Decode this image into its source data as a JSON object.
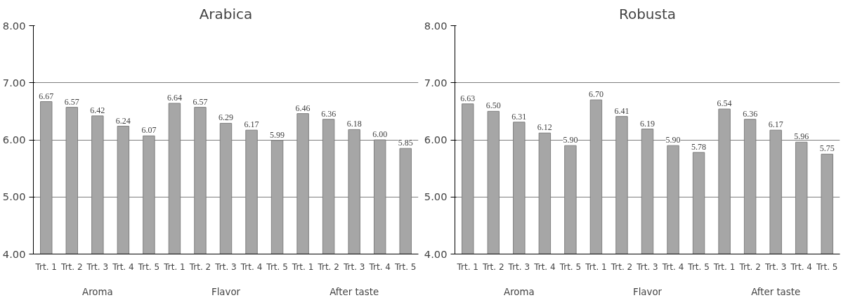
{
  "chart_data": [
    {
      "type": "bar",
      "title": "Arabica",
      "categories": [
        "Trt. 1",
        "Trt. 2",
        "Trt. 3",
        "Trt. 4",
        "Trt. 5",
        "Trt. 1",
        "Trt. 2",
        "Trt. 3",
        "Trt. 4",
        "Trt. 5",
        "Trt. 1",
        "Trt. 2",
        "Trt. 3",
        "Trt. 4",
        "Trt. 5"
      ],
      "values": [
        6.67,
        6.57,
        6.42,
        6.24,
        6.07,
        6.64,
        6.57,
        6.29,
        6.17,
        5.99,
        6.46,
        6.36,
        6.18,
        6.0,
        5.85
      ],
      "value_labels": [
        "6.67",
        "6.57",
        "6.42",
        "6.24",
        "6.07",
        "6.64",
        "6.57",
        "6.29",
        "6.17",
        "5.99",
        "6.46",
        "6.36",
        "6.18",
        "6.00",
        "5.85"
      ],
      "color": "#a6a6a6",
      "ylim": [
        4,
        8
      ],
      "yticks": [
        {
          "value": 4,
          "label": "4.00"
        },
        {
          "value": 5,
          "label": "5.00"
        },
        {
          "value": 6,
          "label": "6.00"
        },
        {
          "value": 7,
          "label": "7.00"
        },
        {
          "value": 8,
          "label": "8.00"
        }
      ],
      "grid": "y",
      "annotations": [
        "Aroma",
        "Flavor",
        "After taste"
      ]
    },
    {
      "type": "bar",
      "title": "Robusta",
      "categories": [
        "Trt. 1",
        "Trt. 2",
        "Trt. 3",
        "Trt. 4",
        "Trt. 5",
        "Trt. 1",
        "Trt. 2",
        "Trt. 3",
        "Trt. 4",
        "Trt. 5",
        "Trt. 1",
        "Trt. 2",
        "Trt. 3",
        "Trt. 4",
        "Trt. 5"
      ],
      "values": [
        6.63,
        6.5,
        6.31,
        6.12,
        5.9,
        6.7,
        6.41,
        6.19,
        5.9,
        5.78,
        6.54,
        6.36,
        6.17,
        5.96,
        5.75
      ],
      "value_labels": [
        "6.63",
        "6.50",
        "6.31",
        "6.12",
        "5.90",
        "6.70",
        "6.41",
        "6.19",
        "5.90",
        "5.78",
        "6.54",
        "6.36",
        "6.17",
        "5.96",
        "5.75"
      ],
      "color": "#a6a6a6",
      "ylim": [
        4,
        8
      ],
      "yticks": [
        {
          "value": 4,
          "label": "4.00"
        },
        {
          "value": 5,
          "label": "5.00"
        },
        {
          "value": 6,
          "label": "6.00"
        },
        {
          "value": 7,
          "label": "7.00"
        },
        {
          "value": 8,
          "label": "8.00"
        }
      ],
      "grid": "y",
      "annotations": [
        "Aroma",
        "Flavor",
        "After taste"
      ]
    }
  ]
}
